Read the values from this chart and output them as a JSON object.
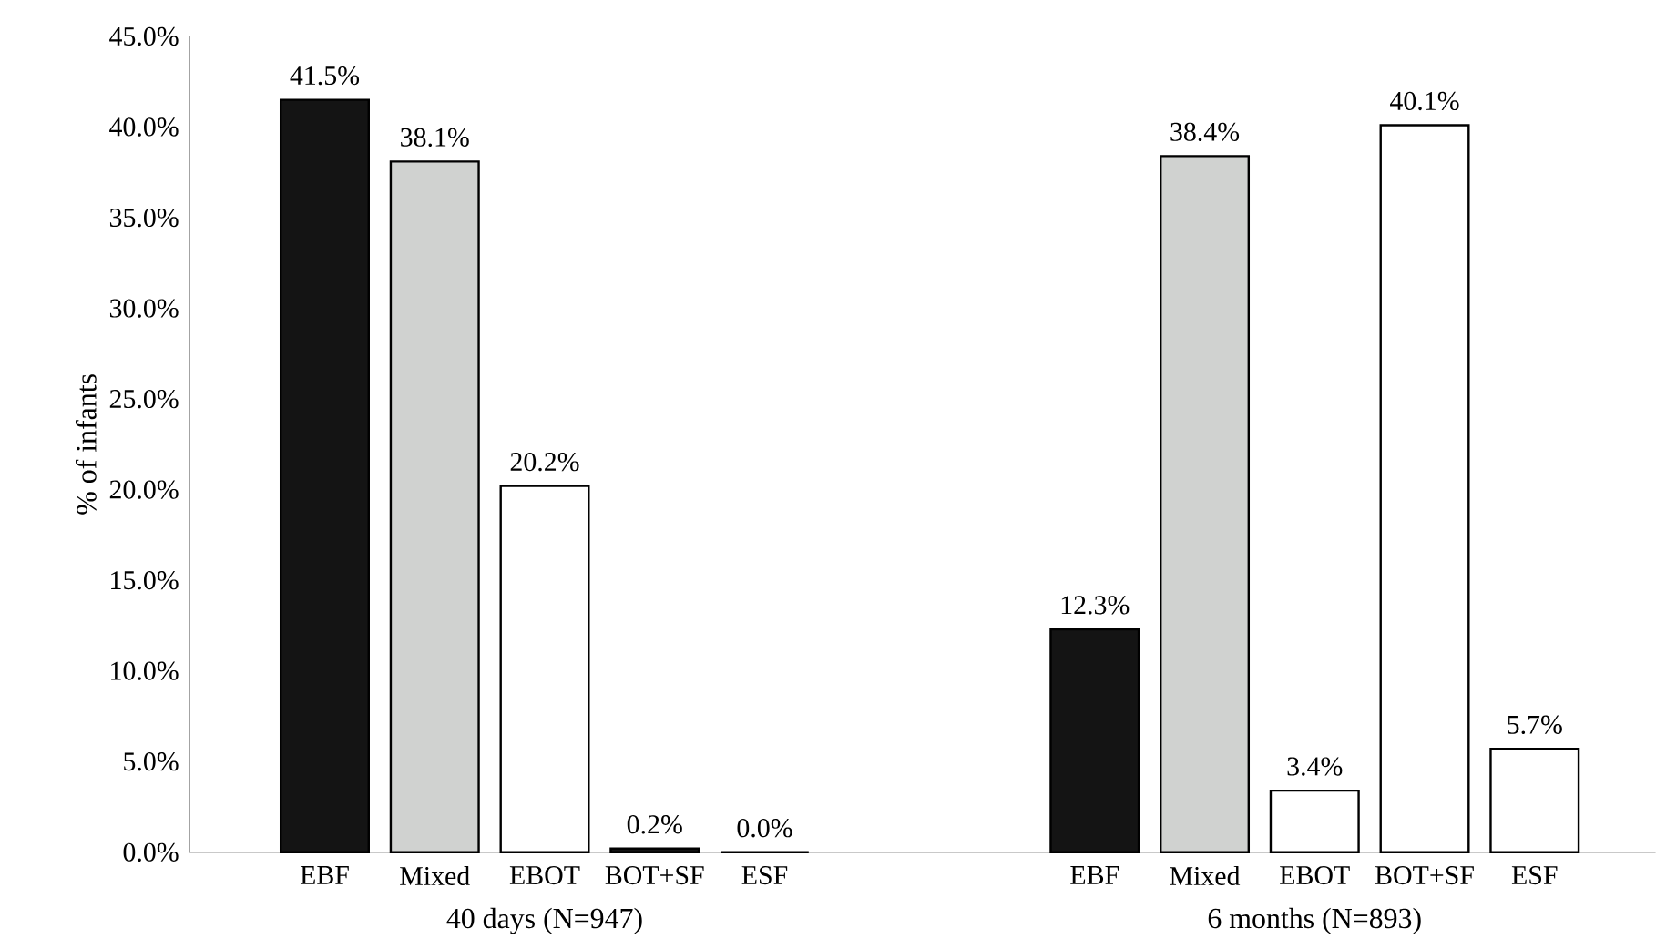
{
  "chart_data": {
    "type": "bar",
    "ylabel": "% of infants",
    "categories": [
      "EBF",
      "Mixed",
      "EBOT",
      "BOT+SF",
      "ESF",
      null,
      null,
      "EBF",
      "Mixed",
      "EBOT",
      "BOT+SF",
      "ESF"
    ],
    "values": [
      41.5,
      38.1,
      20.2,
      0.2,
      0.0,
      null,
      null,
      12.3,
      38.4,
      3.4,
      40.1,
      5.7
    ],
    "value_labels": [
      "41.5%",
      "38.1%",
      "20.2%",
      "0.2%",
      "0.0%",
      null,
      null,
      "12.3%",
      "38.4%",
      "3.4%",
      "40.1%",
      "5.7%"
    ],
    "colors": [
      "#141414",
      "#d0d2d0",
      "#ffffff",
      "#141414",
      "#ffffff",
      null,
      null,
      "#141414",
      "#d0d2d0",
      "#ffffff",
      "#ffffff",
      "#ffffff"
    ],
    "ylim": [
      0,
      45
    ],
    "yticks": [
      {
        "value": 0,
        "label": "0.0%"
      },
      {
        "value": 5,
        "label": "5.0%"
      },
      {
        "value": 10,
        "label": "10.0%"
      },
      {
        "value": 15,
        "label": "15.0%"
      },
      {
        "value": 20,
        "label": "20.0%"
      },
      {
        "value": 25,
        "label": "25.0%"
      },
      {
        "value": 30,
        "label": "30.0%"
      },
      {
        "value": 35,
        "label": "35.0%"
      },
      {
        "value": 40,
        "label": "40.0%"
      },
      {
        "value": 45,
        "label": "45.0%"
      }
    ],
    "annotations": [
      "40 days (N=947)",
      "6 months (N=893)"
    ]
  }
}
